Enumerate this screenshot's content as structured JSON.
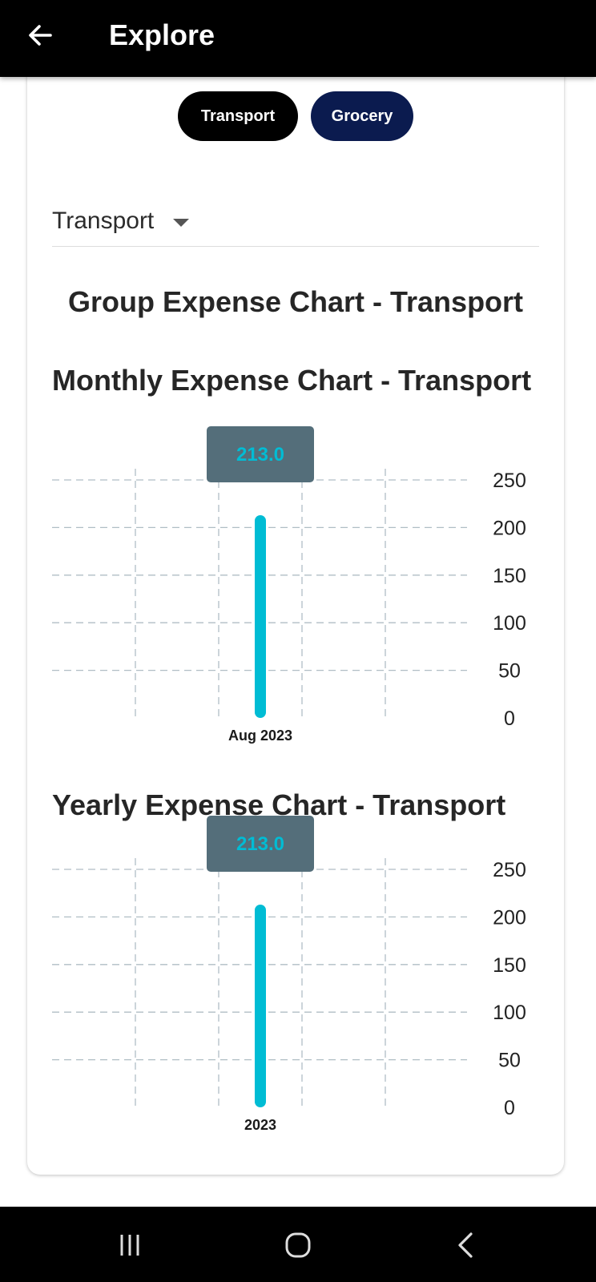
{
  "appbar": {
    "title": "Explore",
    "back_icon": "arrow-left-icon"
  },
  "chips": [
    {
      "label": "Transport",
      "color": "#000000"
    },
    {
      "label": "Grocery",
      "color": "#0b1b4f"
    }
  ],
  "dropdown": {
    "value": "Transport",
    "icon": "caret-down-icon"
  },
  "group_title": "Group Expense Chart - Transport",
  "chart_data": [
    {
      "type": "bar",
      "title": "Monthly Expense Chart - Transport",
      "categories": [
        "Aug 2023"
      ],
      "values": [
        213.0
      ],
      "tooltip_label": "213.0",
      "ylim": [
        0,
        250
      ],
      "ytick_labels": [
        "250",
        "200",
        "150",
        "100",
        "50",
        "0"
      ],
      "ytick_values": [
        250,
        200,
        150,
        100,
        50,
        0
      ],
      "grid": true,
      "bar_color": "#00bcd4",
      "tooltip_bg": "#546e7a",
      "xlabel": "",
      "ylabel": ""
    },
    {
      "type": "bar",
      "title": "Yearly Expense Chart - Transport",
      "categories": [
        "2023"
      ],
      "values": [
        213.0
      ],
      "tooltip_label": "213.0",
      "ylim": [
        0,
        250
      ],
      "ytick_labels": [
        "250",
        "200",
        "150",
        "100",
        "50",
        "0"
      ],
      "ytick_values": [
        250,
        200,
        150,
        100,
        50,
        0
      ],
      "grid": true,
      "bar_color": "#00bcd4",
      "tooltip_bg": "#546e7a",
      "xlabel": "",
      "ylabel": ""
    }
  ],
  "navbar": {
    "icons": [
      "recent-apps-icon",
      "home-icon",
      "back-nav-icon"
    ]
  }
}
